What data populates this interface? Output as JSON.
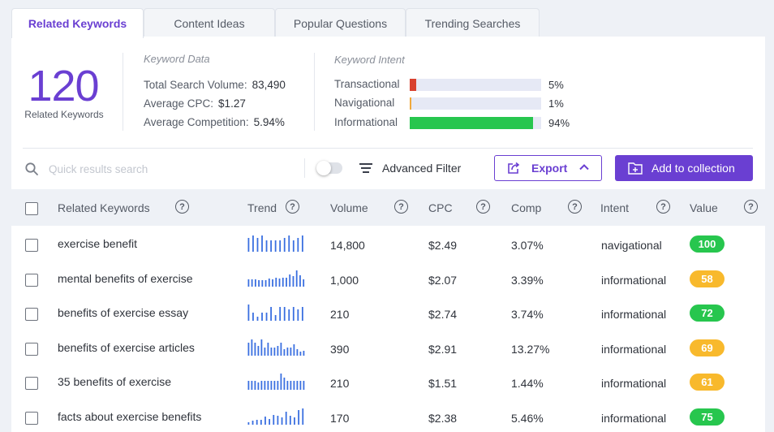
{
  "tabs": [
    {
      "label": "Related Keywords",
      "active": true
    },
    {
      "label": "Content Ideas",
      "active": false
    },
    {
      "label": "Popular Questions",
      "active": false
    },
    {
      "label": "Trending Searches",
      "active": false
    }
  ],
  "summary": {
    "count": "120",
    "count_label": "Related Keywords",
    "keyword_data": {
      "title": "Keyword Data",
      "total_volume_label": "Total Search Volume:",
      "total_volume": "83,490",
      "avg_cpc_label": "Average CPC:",
      "avg_cpc": "$1.27",
      "avg_comp_label": "Average Competition:",
      "avg_comp": "5.94%"
    },
    "keyword_intent": {
      "title": "Keyword Intent",
      "items": [
        {
          "label": "Transactional",
          "pct": "5%",
          "fraction": 0.05,
          "color": "#d9412f"
        },
        {
          "label": "Navigational",
          "pct": "1%",
          "fraction": 0.01,
          "color": "#f0a93b"
        },
        {
          "label": "Informational",
          "pct": "94%",
          "fraction": 0.94,
          "color": "#27c64e"
        }
      ]
    }
  },
  "toolbar": {
    "search_placeholder": "Quick results search",
    "advanced_filter_label": "Advanced Filter",
    "export_label": "Export",
    "add_collection_label": "Add to collection"
  },
  "columns": [
    "Related Keywords",
    "Trend",
    "Volume",
    "CPC",
    "Comp",
    "Intent",
    "Value"
  ],
  "colors": {
    "accent": "#6a3fd2",
    "green": "#27c64e",
    "orange": "#f8b92c",
    "trend": "#3a6fe0"
  },
  "rows": [
    {
      "keyword": "exercise benefit",
      "volume": "14,800",
      "cpc": "$2.49",
      "comp": "3.07%",
      "intent": "navigational",
      "value": "100",
      "value_color": "#27c64e",
      "trend": [
        0.85,
        1,
        0.85,
        1,
        0.7,
        0.7,
        0.7,
        0.7,
        0.85,
        1,
        0.7,
        0.85,
        1
      ]
    },
    {
      "keyword": "mental benefits of exercise",
      "volume": "1,000",
      "cpc": "$2.07",
      "comp": "3.39%",
      "intent": "informational",
      "value": "58",
      "value_color": "#f8b92c",
      "trend": [
        0.45,
        0.45,
        0.45,
        0.4,
        0.4,
        0.4,
        0.5,
        0.45,
        0.55,
        0.5,
        0.55,
        0.55,
        0.75,
        0.65,
        1,
        0.7,
        0.45
      ]
    },
    {
      "keyword": "benefits of exercise essay",
      "volume": "210",
      "cpc": "$2.74",
      "comp": "3.74%",
      "intent": "informational",
      "value": "72",
      "value_color": "#27c64e",
      "trend": [
        1,
        0.5,
        0.25,
        0.5,
        0.5,
        0.85,
        0.35,
        0.85,
        0.85,
        0.7,
        0.85,
        0.7,
        0.85
      ]
    },
    {
      "keyword": "benefits of exercise articles",
      "volume": "390",
      "cpc": "$2.91",
      "comp": "13.27%",
      "intent": "informational",
      "value": "69",
      "value_color": "#f8b92c",
      "trend": [
        0.8,
        1,
        0.8,
        0.6,
        1,
        0.5,
        0.8,
        0.5,
        0.5,
        0.6,
        0.8,
        0.4,
        0.5,
        0.5,
        0.7,
        0.4,
        0.25,
        0.3
      ]
    },
    {
      "keyword": "35 benefits of exercise",
      "volume": "210",
      "cpc": "$1.51",
      "comp": "1.44%",
      "intent": "informational",
      "value": "61",
      "value_color": "#f8b92c",
      "trend": [
        0.55,
        0.55,
        0.55,
        0.45,
        0.55,
        0.55,
        0.55,
        0.55,
        0.55,
        0.55,
        1,
        0.75,
        0.55,
        0.55,
        0.55,
        0.55,
        0.55,
        0.55
      ]
    },
    {
      "keyword": "facts about exercise benefits",
      "volume": "170",
      "cpc": "$2.38",
      "comp": "5.46%",
      "intent": "informational",
      "value": "75",
      "value_color": "#27c64e",
      "trend": [
        0.15,
        0.25,
        0.3,
        0.3,
        0.5,
        0.35,
        0.6,
        0.55,
        0.45,
        0.8,
        0.55,
        0.45,
        0.9,
        1
      ]
    }
  ]
}
